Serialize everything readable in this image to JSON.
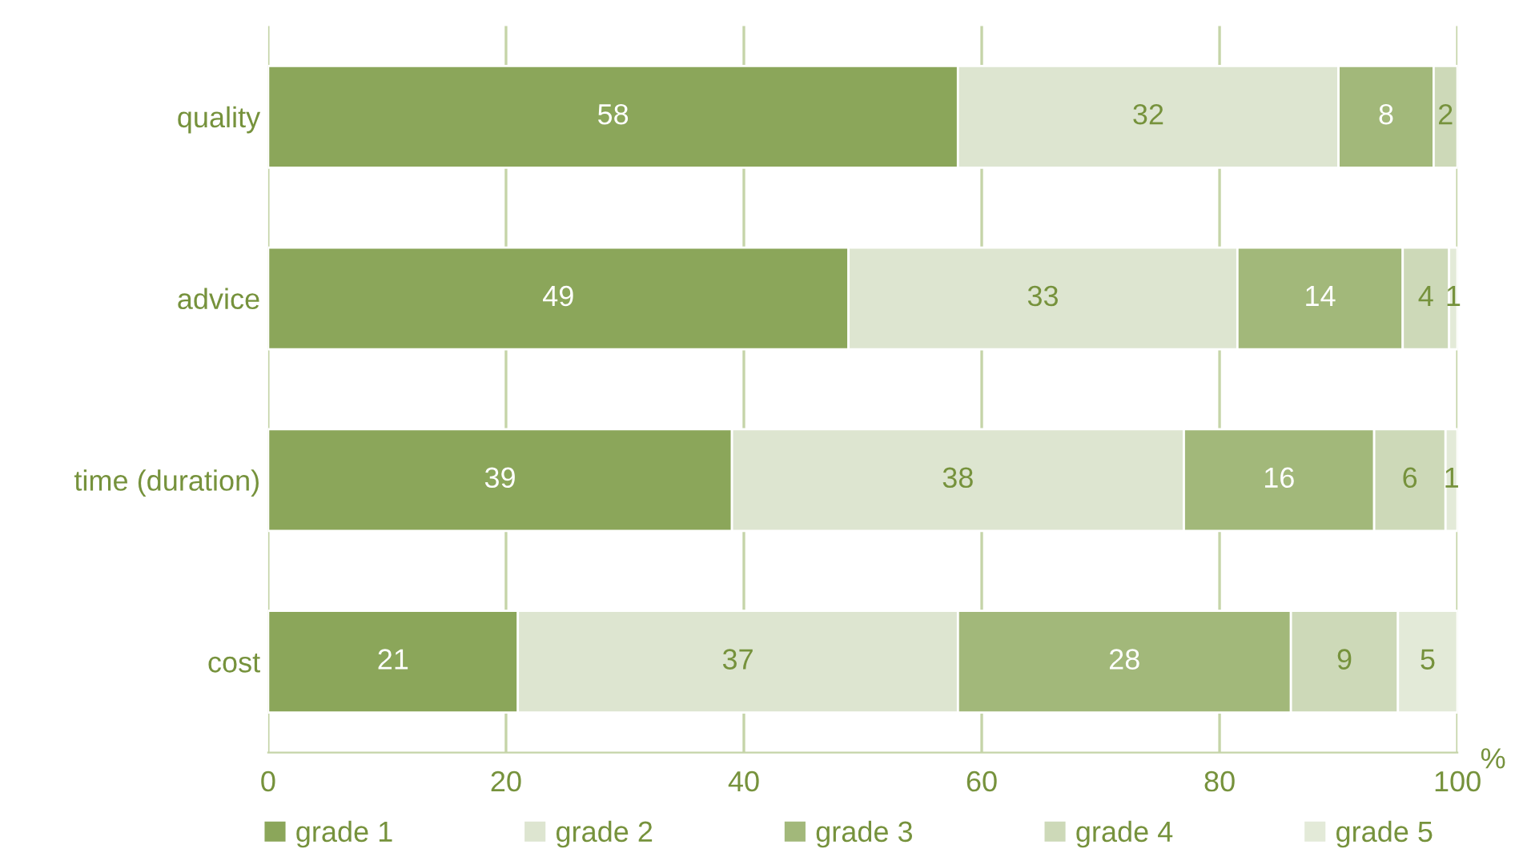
{
  "chart_data": {
    "type": "bar",
    "orientation": "horizontal",
    "stacked": true,
    "categories": [
      "quality",
      "advice",
      "time (duration)",
      "cost"
    ],
    "series": [
      {
        "name": "grade 1",
        "color": "#8ba65a",
        "values": [
          58,
          48.8,
          39,
          21
        ],
        "value_labels": [
          "58",
          "49",
          "39",
          "21"
        ]
      },
      {
        "name": "grade 2",
        "color": "#dde5d0",
        "values": [
          32,
          32.7,
          38,
          37
        ],
        "value_labels": [
          "32",
          "33",
          "38",
          "37"
        ]
      },
      {
        "name": "grade 3",
        "color": "#a2b87a",
        "values": [
          8,
          13.9,
          16,
          28
        ],
        "value_labels": [
          "8",
          "14",
          "16",
          "28"
        ]
      },
      {
        "name": "grade 4",
        "color": "#cdd9b8",
        "values": [
          2,
          3.9,
          6,
          9
        ],
        "value_labels": [
          "2",
          "4",
          "6",
          "9"
        ]
      },
      {
        "name": "grade 5",
        "color": "#e3ead8",
        "values": [
          null,
          0.7,
          1,
          5
        ],
        "value_labels": [
          null,
          "1",
          "1",
          "5"
        ]
      }
    ],
    "xlabel": "%",
    "xlim": [
      0,
      100
    ],
    "xticks": [
      0,
      20,
      40,
      60,
      80,
      100
    ],
    "grid": "x",
    "legend": "bottom"
  }
}
